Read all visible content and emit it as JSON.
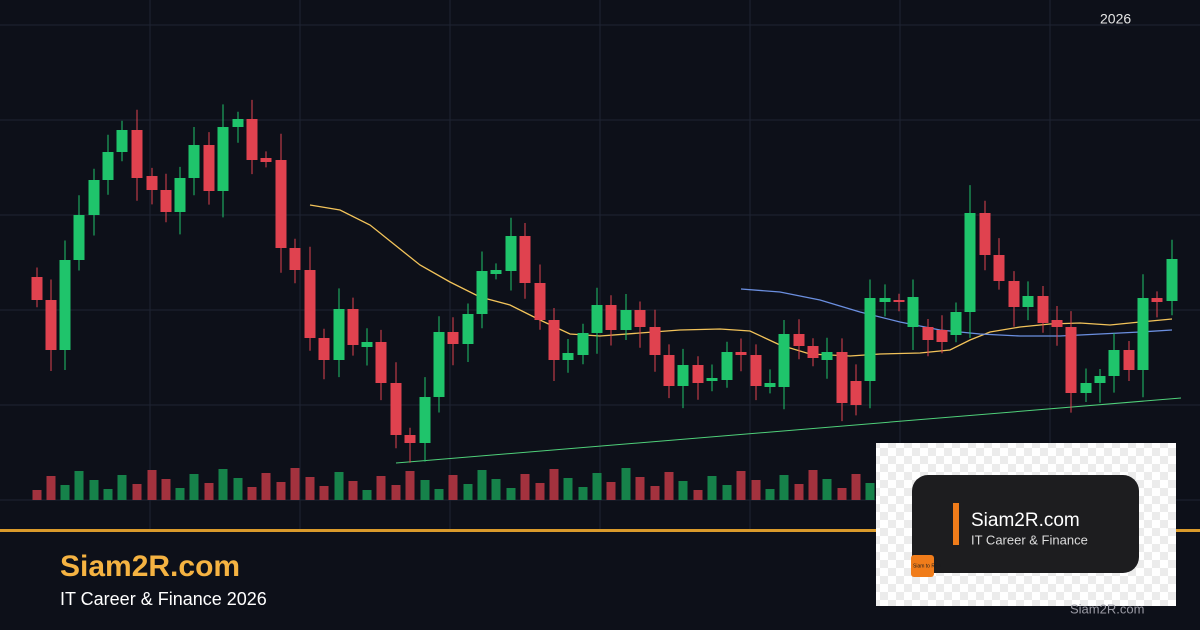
{
  "header": {
    "year": "2026"
  },
  "brand": {
    "title": "Siam2R.com",
    "subtitle": "IT Career & Finance 2026"
  },
  "logo": {
    "title": "Siam2R.com",
    "subtitle": "IT Career & Finance",
    "badge": "Siam to Rich"
  },
  "watermark": "Siam2R.com"
}
